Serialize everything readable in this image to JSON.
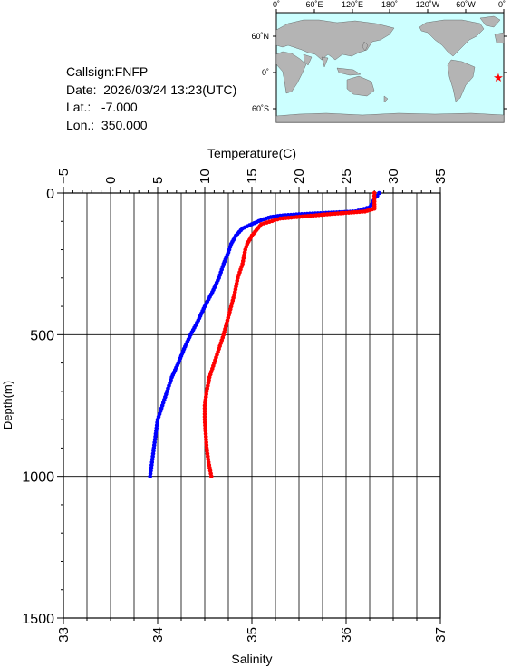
{
  "station": {
    "callsign": "Callsign:FNFP",
    "date": "Date:  2026/03/24 13:23(UTC)",
    "lat": "Lat.:   -7.000",
    "lon": "Lon.:  350.000"
  },
  "map": {
    "lon_labels": [
      "0˚",
      "60˚E",
      "120˚E",
      "180˚",
      "120˚W",
      "60˚W",
      "0˚"
    ],
    "lat_labels": [
      "60˚N",
      "0˚",
      "60˚S"
    ],
    "marker": {
      "lat": -7.0,
      "lon": 350.0,
      "color": "#ff0000"
    },
    "ocean_color": "#ccffff",
    "land_color": "#b4b4b4"
  },
  "chart_data": {
    "type": "line",
    "title": "",
    "ylabel": "Depth(m)",
    "ylim": [
      0,
      1500
    ],
    "y_inverted": true,
    "y_ticks": [
      0,
      500,
      1000,
      1500
    ],
    "top_axis": {
      "label": "Temperature(C)",
      "range": [
        -5,
        35
      ],
      "ticks": [
        -5,
        0,
        5,
        10,
        15,
        20,
        25,
        30,
        35
      ]
    },
    "bottom_axis": {
      "label": "Salinity",
      "range": [
        33,
        37
      ],
      "ticks": [
        33,
        34,
        35,
        36,
        37
      ]
    },
    "grid": true,
    "series": [
      {
        "axis": "top",
        "color": "#0000ff",
        "points": [
          [
            28.5,
            0
          ],
          [
            28.3,
            10
          ],
          [
            28.0,
            20
          ],
          [
            27.8,
            35
          ],
          [
            27.5,
            50
          ],
          [
            26.0,
            65
          ],
          [
            20.0,
            75
          ],
          [
            18.0,
            80
          ],
          [
            17.0,
            85
          ],
          [
            16.0,
            95
          ],
          [
            15.0,
            110
          ],
          [
            14.0,
            125
          ],
          [
            13.3,
            150
          ],
          [
            12.8,
            180
          ],
          [
            12.5,
            210
          ],
          [
            12.0,
            250
          ],
          [
            11.5,
            300
          ],
          [
            10.8,
            350
          ],
          [
            10.0,
            400
          ],
          [
            9.3,
            450
          ],
          [
            8.5,
            500
          ],
          [
            7.8,
            550
          ],
          [
            7.2,
            600
          ],
          [
            6.5,
            650
          ],
          [
            6.0,
            700
          ],
          [
            5.5,
            750
          ],
          [
            5.0,
            800
          ],
          [
            4.8,
            850
          ],
          [
            4.6,
            900
          ],
          [
            4.4,
            950
          ],
          [
            4.2,
            1000
          ]
        ]
      },
      {
        "axis": "bottom",
        "color": "#ff0000",
        "points": [
          [
            36.3,
            0
          ],
          [
            36.3,
            20
          ],
          [
            36.3,
            40
          ],
          [
            36.3,
            55
          ],
          [
            36.2,
            65
          ],
          [
            35.8,
            75
          ],
          [
            35.3,
            90
          ],
          [
            35.1,
            110
          ],
          [
            35.05,
            130
          ],
          [
            35.0,
            150
          ],
          [
            34.95,
            180
          ],
          [
            34.93,
            200
          ],
          [
            34.9,
            250
          ],
          [
            34.85,
            300
          ],
          [
            34.82,
            350
          ],
          [
            34.78,
            400
          ],
          [
            34.74,
            450
          ],
          [
            34.7,
            500
          ],
          [
            34.65,
            550
          ],
          [
            34.6,
            600
          ],
          [
            34.55,
            650
          ],
          [
            34.52,
            700
          ],
          [
            34.5,
            750
          ],
          [
            34.5,
            800
          ],
          [
            34.51,
            850
          ],
          [
            34.52,
            900
          ],
          [
            34.54,
            950
          ],
          [
            34.57,
            1000
          ]
        ]
      }
    ]
  }
}
